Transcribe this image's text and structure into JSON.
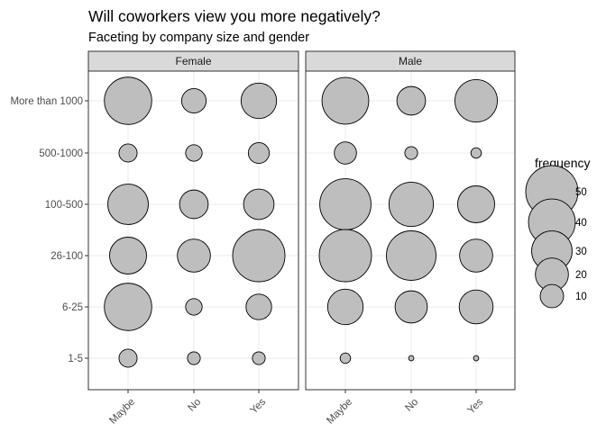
{
  "chart_data": {
    "type": "scatter",
    "title": "Will coworkers view you more negatively?",
    "subtitle": "Faceting by company size and gender",
    "facets": [
      "Female",
      "Male"
    ],
    "x_categories": [
      "Maybe",
      "No",
      "Yes"
    ],
    "y_categories": [
      "1-5",
      "6-25",
      "26-100",
      "100-500",
      "500-1000",
      "More than 1000"
    ],
    "size_legend": {
      "title": "frequency",
      "breaks": [
        50,
        40,
        30,
        20,
        10
      ]
    },
    "size_range_max": 58,
    "series": [
      {
        "name": "Female",
        "points": [
          {
            "x": "Maybe",
            "y": "More than 1000",
            "frequency": 41
          },
          {
            "x": "No",
            "y": "More than 1000",
            "frequency": 11
          },
          {
            "x": "Yes",
            "y": "More than 1000",
            "frequency": 23
          },
          {
            "x": "Maybe",
            "y": "500-1000",
            "frequency": 6
          },
          {
            "x": "No",
            "y": "500-1000",
            "frequency": 5
          },
          {
            "x": "Yes",
            "y": "500-1000",
            "frequency": 8
          },
          {
            "x": "Maybe",
            "y": "100-500",
            "frequency": 30
          },
          {
            "x": "No",
            "y": "100-500",
            "frequency": 15
          },
          {
            "x": "Yes",
            "y": "100-500",
            "frequency": 17
          },
          {
            "x": "Maybe",
            "y": "26-100",
            "frequency": 25
          },
          {
            "x": "No",
            "y": "26-100",
            "frequency": 20
          },
          {
            "x": "Yes",
            "y": "26-100",
            "frequency": 50
          },
          {
            "x": "Maybe",
            "y": "6-25",
            "frequency": 41
          },
          {
            "x": "No",
            "y": "6-25",
            "frequency": 5
          },
          {
            "x": "Yes",
            "y": "6-25",
            "frequency": 12
          },
          {
            "x": "Maybe",
            "y": "1-5",
            "frequency": 6
          },
          {
            "x": "No",
            "y": "1-5",
            "frequency": 3
          },
          {
            "x": "Yes",
            "y": "1-5",
            "frequency": 3
          }
        ]
      },
      {
        "name": "Male",
        "points": [
          {
            "x": "Maybe",
            "y": "More than 1000",
            "frequency": 40
          },
          {
            "x": "No",
            "y": "More than 1000",
            "frequency": 15
          },
          {
            "x": "Yes",
            "y": "More than 1000",
            "frequency": 33
          },
          {
            "x": "Maybe",
            "y": "500-1000",
            "frequency": 9
          },
          {
            "x": "No",
            "y": "500-1000",
            "frequency": 3
          },
          {
            "x": "Yes",
            "y": "500-1000",
            "frequency": 2
          },
          {
            "x": "Maybe",
            "y": "100-500",
            "frequency": 48
          },
          {
            "x": "No",
            "y": "100-500",
            "frequency": 36
          },
          {
            "x": "Yes",
            "y": "100-500",
            "frequency": 25
          },
          {
            "x": "Maybe",
            "y": "26-100",
            "frequency": 50
          },
          {
            "x": "No",
            "y": "26-100",
            "frequency": 45
          },
          {
            "x": "Yes",
            "y": "26-100",
            "frequency": 20
          },
          {
            "x": "Maybe",
            "y": "6-25",
            "frequency": 23
          },
          {
            "x": "No",
            "y": "6-25",
            "frequency": 19
          },
          {
            "x": "Yes",
            "y": "6-25",
            "frequency": 21
          },
          {
            "x": "Maybe",
            "y": "1-5",
            "frequency": 2
          },
          {
            "x": "No",
            "y": "1-5",
            "frequency": 0.5
          },
          {
            "x": "Yes",
            "y": "1-5",
            "frequency": 0.5
          }
        ]
      }
    ],
    "colors": {
      "point_fill": "#bebebe",
      "point_stroke": "#000000",
      "strip_fill": "#d9d9d9",
      "grid": "#ebebeb",
      "border": "#333333"
    },
    "grid": true,
    "legend_position": "right"
  }
}
